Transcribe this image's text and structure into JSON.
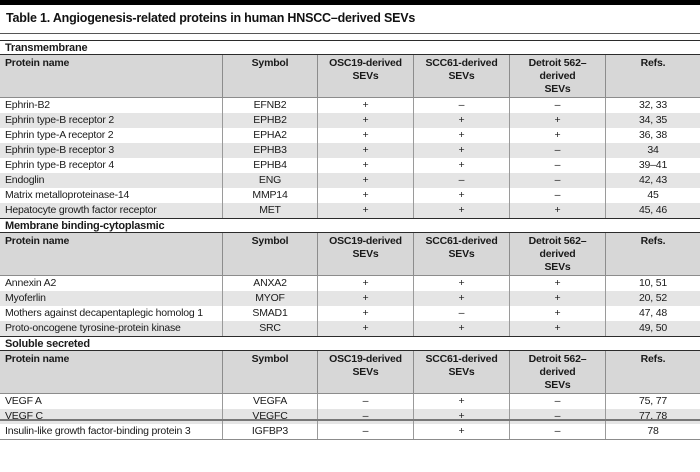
{
  "title": "Table 1. Angiogenesis-related proteins in human HNSCC–derived SEVs",
  "columns": [
    "Protein name",
    "Symbol",
    "OSC19-derived\nSEVs",
    "SCC61-derived\nSEVs",
    "Detroit 562–derived\nSEVs",
    "Refs."
  ],
  "sections": [
    {
      "label": "Transmembrane",
      "rows": [
        {
          "protein": "Ephrin-B2",
          "symbol": "EFNB2",
          "osc19": "+",
          "scc61": "–",
          "detroit562": "–",
          "refs": "32, 33"
        },
        {
          "protein": "Ephrin type-B receptor 2",
          "symbol": "EPHB2",
          "osc19": "+",
          "scc61": "+",
          "detroit562": "+",
          "refs": "34, 35"
        },
        {
          "protein": "Ephrin type-A receptor 2",
          "symbol": "EPHA2",
          "osc19": "+",
          "scc61": "+",
          "detroit562": "+",
          "refs": "36, 38"
        },
        {
          "protein": "Ephrin type-B receptor 3",
          "symbol": "EPHB3",
          "osc19": "+",
          "scc61": "+",
          "detroit562": "–",
          "refs": "34"
        },
        {
          "protein": "Ephrin type-B receptor 4",
          "symbol": "EPHB4",
          "osc19": "+",
          "scc61": "+",
          "detroit562": "–",
          "refs": "39–41"
        },
        {
          "protein": "Endoglin",
          "symbol": "ENG",
          "osc19": "+",
          "scc61": "–",
          "detroit562": "–",
          "refs": "42, 43"
        },
        {
          "protein": "Matrix metalloproteinase-14",
          "symbol": "MMP14",
          "osc19": "+",
          "scc61": "+",
          "detroit562": "–",
          "refs": "45"
        },
        {
          "protein": "Hepatocyte growth factor receptor",
          "symbol": "MET",
          "osc19": "+",
          "scc61": "+",
          "detroit562": "+",
          "refs": "45, 46"
        }
      ]
    },
    {
      "label": "Membrane binding-cytoplasmic",
      "rows": [
        {
          "protein": "Annexin A2",
          "symbol": "ANXA2",
          "osc19": "+",
          "scc61": "+",
          "detroit562": "+",
          "refs": "10, 51"
        },
        {
          "protein": "Myoferlin",
          "symbol": "MYOF",
          "osc19": "+",
          "scc61": "+",
          "detroit562": "+",
          "refs": "20, 52"
        },
        {
          "protein": "Mothers against decapentaplegic homolog 1",
          "symbol": "SMAD1",
          "osc19": "+",
          "scc61": "–",
          "detroit562": "+",
          "refs": "47, 48"
        },
        {
          "protein": "Proto-oncogene tyrosine-protein kinase",
          "symbol": "SRC",
          "osc19": "+",
          "scc61": "+",
          "detroit562": "+",
          "refs": "49, 50"
        }
      ]
    },
    {
      "label": "Soluble secreted",
      "rows": [
        {
          "protein": "VEGF A",
          "symbol": "VEGFA",
          "osc19": "–",
          "scc61": "+",
          "detroit562": "–",
          "refs": "75, 77"
        },
        {
          "protein": "VEGF C",
          "symbol": "VEGFC",
          "osc19": "–",
          "scc61": "+",
          "detroit562": "–",
          "refs": "77, 78"
        },
        {
          "protein": "Insulin-like growth factor-binding protein 3",
          "symbol": "IGFBP3",
          "osc19": "–",
          "scc61": "+",
          "detroit562": "–",
          "refs": "78"
        }
      ]
    }
  ]
}
